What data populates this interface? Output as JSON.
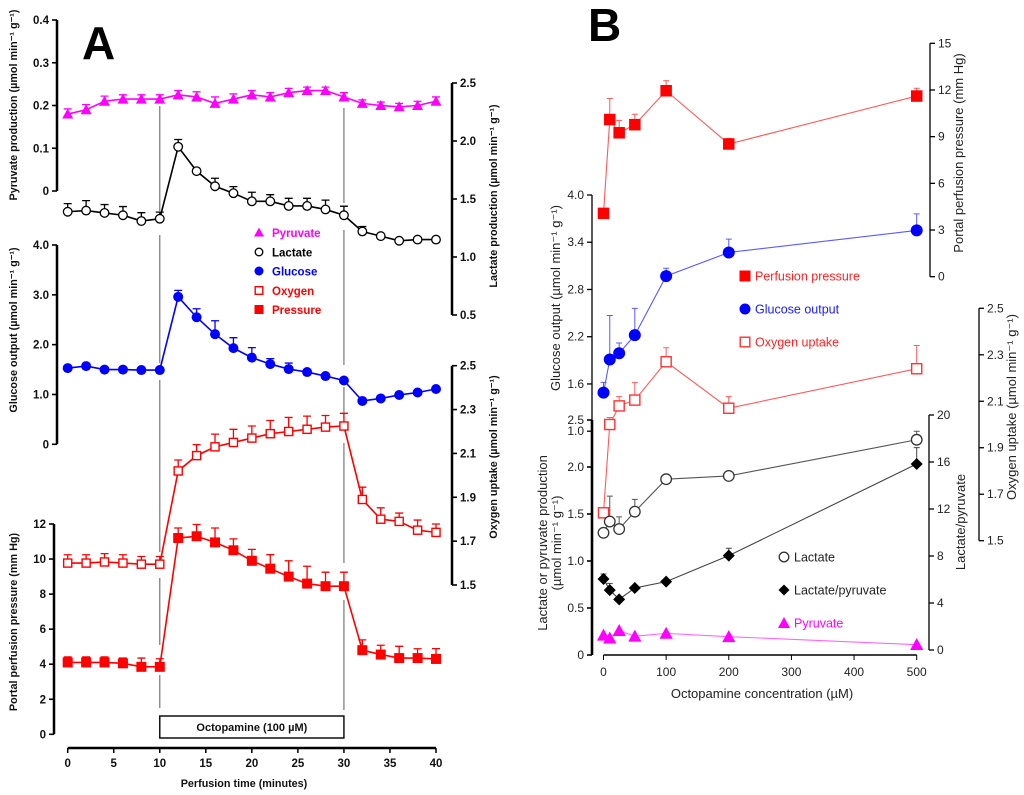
{
  "chart_data": [
    {
      "panel": "A",
      "panel_letter": "A",
      "type": "line",
      "title": "",
      "grid": false,
      "x": [
        0,
        2,
        4,
        6,
        8,
        10,
        12,
        14,
        16,
        18,
        20,
        22,
        24,
        26,
        28,
        30,
        32,
        34,
        36,
        38,
        40
      ],
      "xlabel": "Perfusion time (minutes)",
      "xlim": [
        0,
        40
      ],
      "xticks": [
        0,
        5,
        10,
        15,
        20,
        25,
        30,
        35,
        40
      ],
      "xtick_labels": [
        "0",
        "5",
        "10",
        "15",
        "20",
        "25",
        "30",
        "35",
        "40"
      ],
      "axes": [
        {
          "id": "pyruvate",
          "side": "left",
          "label_lines": [
            "Pyruvate production (µmol min⁻¹ g⁻¹)"
          ],
          "range": [
            0,
            0.4
          ],
          "ticks": [
            0,
            0.1,
            0.2,
            0.3,
            0.4
          ],
          "tick_labels": [
            "0",
            "0.1",
            "0.2",
            "0.3",
            "0.4"
          ]
        },
        {
          "id": "lactate",
          "side": "right",
          "label_lines": [
            "Lactate  production (µmol min⁻¹ g⁻¹)"
          ],
          "range": [
            0.5,
            2.5
          ],
          "ticks": [
            0.5,
            1.0,
            1.5,
            2.0,
            2.5
          ],
          "tick_labels": [
            "0.5",
            "1.0",
            "1.5",
            "2.0",
            "2.5"
          ]
        },
        {
          "id": "glucose",
          "side": "left",
          "label_lines": [
            "Glucose output (µmol min⁻¹ g⁻¹)"
          ],
          "range": [
            0,
            4
          ],
          "ticks": [
            0,
            1,
            2,
            3,
            4
          ],
          "tick_labels": [
            "0",
            "1.0",
            "2.0",
            "3.0",
            "4.0"
          ]
        },
        {
          "id": "oxygen",
          "side": "right",
          "label_lines": [
            "Oxygen uptake (µmol min⁻¹ g⁻¹)"
          ],
          "range": [
            1.5,
            2.5
          ],
          "ticks": [
            1.5,
            1.7,
            1.9,
            2.1,
            2.3,
            2.5
          ],
          "tick_labels": [
            "1.5",
            "1.7",
            "1.9",
            "2.1",
            "2.3",
            "2.5"
          ]
        },
        {
          "id": "pressure",
          "side": "left",
          "label_lines": [
            "Portal perfusion pressure (mm Hg)"
          ],
          "range": [
            0,
            12
          ],
          "ticks": [
            0,
            2,
            4,
            6,
            8,
            10,
            12
          ],
          "tick_labels": [
            "0",
            "2",
            "4",
            "6",
            "8",
            "10",
            "12"
          ]
        }
      ],
      "series": [
        {
          "name": "Pyruvate",
          "axis": "pyruvate",
          "marker": "triangle-filled",
          "line_color": "#ff00ff",
          "marker_color": "#ff00ff",
          "values": [
            0.18,
            0.19,
            0.21,
            0.215,
            0.215,
            0.215,
            0.225,
            0.22,
            0.205,
            0.215,
            0.225,
            0.22,
            0.23,
            0.235,
            0.235,
            0.22,
            0.205,
            0.2,
            0.197,
            0.2,
            0.21
          ],
          "errors": [
            0.012,
            0.012,
            0.012,
            0.01,
            0.01,
            0.01,
            0.01,
            0.012,
            0.015,
            0.012,
            0.01,
            0.01,
            0.01,
            0.008,
            0.008,
            0.01,
            0.008,
            0.008,
            0.008,
            0.01,
            0.01
          ]
        },
        {
          "name": "Lactate",
          "axis": "lactate",
          "marker": "circle-open",
          "line_color": "#000000",
          "marker_color": "#000000",
          "values": [
            1.39,
            1.4,
            1.38,
            1.36,
            1.31,
            1.33,
            1.95,
            1.74,
            1.61,
            1.55,
            1.48,
            1.48,
            1.44,
            1.44,
            1.41,
            1.36,
            1.22,
            1.18,
            1.14,
            1.15,
            1.15
          ],
          "errors": [
            0.07,
            0.086,
            0.072,
            0.075,
            0.072,
            0.057,
            0.063,
            0.02,
            0.069,
            0.057,
            0.078,
            0.057,
            0.066,
            0.066,
            0.08,
            0.078,
            0.043,
            0.01,
            0.01,
            0.01,
            0.01
          ]
        },
        {
          "name": "Glucose",
          "axis": "glucose",
          "marker": "circle-filled",
          "line_color": "#0000ff",
          "marker_color": "#0000ff",
          "values": [
            1.53,
            1.57,
            1.5,
            1.5,
            1.49,
            1.49,
            2.96,
            2.55,
            2.21,
            1.93,
            1.74,
            1.61,
            1.51,
            1.45,
            1.37,
            1.28,
            0.87,
            0.92,
            0.99,
            1.04,
            1.11
          ],
          "errors": [
            0.02,
            0.02,
            0.02,
            0.02,
            0.02,
            0.02,
            0.13,
            0.17,
            0.27,
            0.21,
            0.2,
            0.11,
            0.12,
            0.03,
            0.03,
            0.03,
            0.02,
            0.02,
            0.02,
            0.02,
            0.02
          ]
        },
        {
          "name": "Oxygen",
          "axis": "oxygen",
          "marker": "square-open",
          "line_color": "#ff0000",
          "marker_color": "#ff0000",
          "values": [
            1.6,
            1.6,
            1.605,
            1.6,
            1.595,
            1.595,
            2.02,
            2.09,
            2.13,
            2.15,
            2.17,
            2.19,
            2.2,
            2.21,
            2.22,
            2.225,
            1.89,
            1.8,
            1.79,
            1.75,
            1.74
          ],
          "errors": [
            0.038,
            0.038,
            0.038,
            0.038,
            0.035,
            0.035,
            0.05,
            0.05,
            0.058,
            0.06,
            0.055,
            0.06,
            0.064,
            0.06,
            0.053,
            0.058,
            0.056,
            0.052,
            0.038,
            0.046,
            0.038
          ]
        },
        {
          "name": "Pressure",
          "axis": "pressure",
          "marker": "square-filled",
          "line_color": "#ff0000",
          "marker_color": "#ff0000",
          "values": [
            4.1,
            4.1,
            4.1,
            4.05,
            3.85,
            3.85,
            11.2,
            11.3,
            10.95,
            10.5,
            9.9,
            9.45,
            9.0,
            8.6,
            8.45,
            8.45,
            4.8,
            4.55,
            4.35,
            4.35,
            4.3
          ],
          "errors": [
            0.32,
            0.32,
            0.32,
            0.3,
            0.5,
            0.46,
            0.57,
            0.67,
            0.82,
            0.65,
            0.65,
            0.8,
            0.9,
            0.99,
            0.8,
            0.8,
            0.59,
            0.53,
            0.67,
            0.53,
            0.59
          ]
        }
      ],
      "annotation": {
        "text": "Octopamine (100 µM)",
        "x_start": 10,
        "x_end": 30
      },
      "legend": {
        "placement": "center",
        "entries": [
          {
            "label": "Pyruvate",
            "marker": "triangle-filled",
            "color": "#ff00ff",
            "text_color": "#ff00ff"
          },
          {
            "label": "Lactate",
            "marker": "circle-open",
            "color": "#000000",
            "text_color": "#000000"
          },
          {
            "label": "Glucose",
            "marker": "circle-filled",
            "color": "#0000ff",
            "text_color": "#0000ff"
          },
          {
            "label": "Oxygen",
            "marker": "square-open",
            "color": "#ff0000",
            "text_color": "#ff0000"
          },
          {
            "label": "Pressure",
            "marker": "square-filled",
            "color": "#ff0000",
            "text_color": "#ff0000"
          }
        ]
      }
    },
    {
      "panel": "B",
      "panel_letter": "B",
      "type": "line",
      "title": "",
      "grid": false,
      "x": [
        0,
        10,
        25,
        50,
        100,
        200,
        500
      ],
      "xlabel": "Octopamine concentration (µM)",
      "xlim": [
        0,
        500
      ],
      "xticks": [
        0,
        100,
        200,
        300,
        400,
        500
      ],
      "xtick_labels": [
        "0",
        "100",
        "200",
        "300",
        "400",
        "500"
      ],
      "axes": [
        {
          "id": "pressure",
          "side": "right",
          "label_lines": [
            "Portal perfusion pressure (mm Hg)"
          ],
          "range": [
            0,
            15
          ],
          "ticks": [
            0,
            3,
            6,
            9,
            12,
            15
          ],
          "tick_labels": [
            "0",
            "3",
            "6",
            "9",
            "12",
            "15"
          ]
        },
        {
          "id": "glucose",
          "side": "left",
          "label_lines": [
            "Glucose output (µmol min⁻¹ g⁻¹)"
          ],
          "range": [
            1.0,
            4.0
          ],
          "ticks": [
            1.0,
            1.6,
            2.2,
            2.8,
            3.4,
            4.0
          ],
          "tick_labels": [
            "1.0",
            "1.6",
            "2.2",
            "2.8",
            "3.4",
            "4.0"
          ]
        },
        {
          "id": "production",
          "side": "left",
          "label_lines": [
            "Lactate or pyruvate production",
            "(µmol min⁻¹ g⁻¹)"
          ],
          "range": [
            0,
            2.5
          ],
          "ticks": [
            0,
            0.5,
            1.0,
            1.5,
            2.0,
            2.5
          ],
          "tick_labels": [
            "0",
            "0.5",
            "1.0",
            "1.5",
            "2.0",
            "2.5"
          ]
        },
        {
          "id": "ratio",
          "side": "right",
          "label_lines": [
            "Lactate/pyruvate"
          ],
          "range": [
            0,
            20
          ],
          "ticks": [
            0,
            4,
            8,
            12,
            16,
            20
          ],
          "tick_labels": [
            "0",
            "4",
            "8",
            "12",
            "16",
            "20"
          ]
        },
        {
          "id": "oxygen",
          "side": "right",
          "label_lines": [
            "Oxygen uptake (µmol min⁻¹ g⁻¹)"
          ],
          "range": [
            1.5,
            2.5
          ],
          "ticks": [
            1.5,
            1.7,
            1.9,
            2.1,
            2.3,
            2.5
          ],
          "tick_labels": [
            "1.5",
            "1.7",
            "1.9",
            "2.1",
            "2.3",
            "2.5"
          ]
        }
      ],
      "series": [
        {
          "name": "Perfusion pressure",
          "axis": "pressure",
          "marker": "square-filled",
          "line_color": "#ff5a5a",
          "marker_color": "#ff0000",
          "values": [
            4.07,
            10.1,
            9.25,
            9.77,
            11.95,
            8.53,
            11.61
          ],
          "errors": [
            0,
            1.35,
            0.8,
            0.67,
            0.64,
            0.35,
            0.5
          ]
        },
        {
          "name": "Glucose output",
          "axis": "glucose",
          "marker": "circle-filled",
          "line_color": "#5a5aff",
          "marker_color": "#0000ff",
          "values": [
            1.49,
            1.91,
            1.99,
            2.22,
            2.97,
            3.27,
            3.55
          ],
          "errors": [
            0.13,
            0.56,
            0.13,
            0.34,
            0.1,
            0.17,
            0.21
          ]
        },
        {
          "name": "Oxygen uptake",
          "axis": "oxygen",
          "marker": "square-open",
          "line_color": "#ff5a5a",
          "marker_color": "#ff3333",
          "values": [
            1.62,
            2.0,
            2.08,
            2.105,
            2.27,
            2.07,
            2.24
          ],
          "errors": [
            0.02,
            0.03,
            0.04,
            0.075,
            0.06,
            0.05,
            0.1
          ]
        },
        {
          "name": "Lactate",
          "axis": "production",
          "marker": "circle-open",
          "line_color": "#555555",
          "marker_color": "#333333",
          "values": [
            1.3,
            1.42,
            1.34,
            1.525,
            1.87,
            1.905,
            2.29
          ],
          "errors": [
            0.03,
            0.27,
            0.13,
            0.13,
            0.02,
            0.01,
            0.09
          ]
        },
        {
          "name": "Lactate/pyruvate",
          "axis": "ratio",
          "marker": "diamond-filled",
          "line_color": "#444444",
          "marker_color": "#000000",
          "values": [
            6.04,
            5.1,
            4.31,
            5.28,
            5.82,
            8.03,
            15.83
          ],
          "errors": [
            0.43,
            0.57,
            0,
            0,
            0,
            0.63,
            1.39
          ]
        },
        {
          "name": "Pyruvate",
          "axis": "production",
          "marker": "triangle-filled",
          "line_color": "#ff66ff",
          "marker_color": "#ff00ff",
          "values": [
            0.21,
            0.18,
            0.26,
            0.2,
            0.23,
            0.195,
            0.11
          ],
          "errors": [
            0,
            0,
            0,
            0,
            0,
            0,
            0
          ]
        }
      ],
      "legend": {
        "placement": "center",
        "entries": [
          {
            "label": "Perfusion pressure",
            "marker": "square-filled",
            "color": "#ff0000",
            "text_color": "#ff2222"
          },
          {
            "label": "Glucose output",
            "marker": "circle-filled",
            "color": "#0000ff",
            "text_color": "#1a1aff"
          },
          {
            "label": "Oxygen uptake",
            "marker": "square-open",
            "color": "#ff3333",
            "text_color": "#ff2222"
          },
          {
            "label": "Lactate",
            "marker": "circle-open",
            "color": "#333333",
            "text_color": "#222222"
          },
          {
            "label": "Lactate/pyruvate",
            "marker": "diamond-filled",
            "color": "#000000",
            "text_color": "#222222"
          },
          {
            "label": "Pyruvate",
            "marker": "triangle-filled",
            "color": "#ff00ff",
            "text_color": "#ff00ff"
          }
        ]
      }
    }
  ]
}
